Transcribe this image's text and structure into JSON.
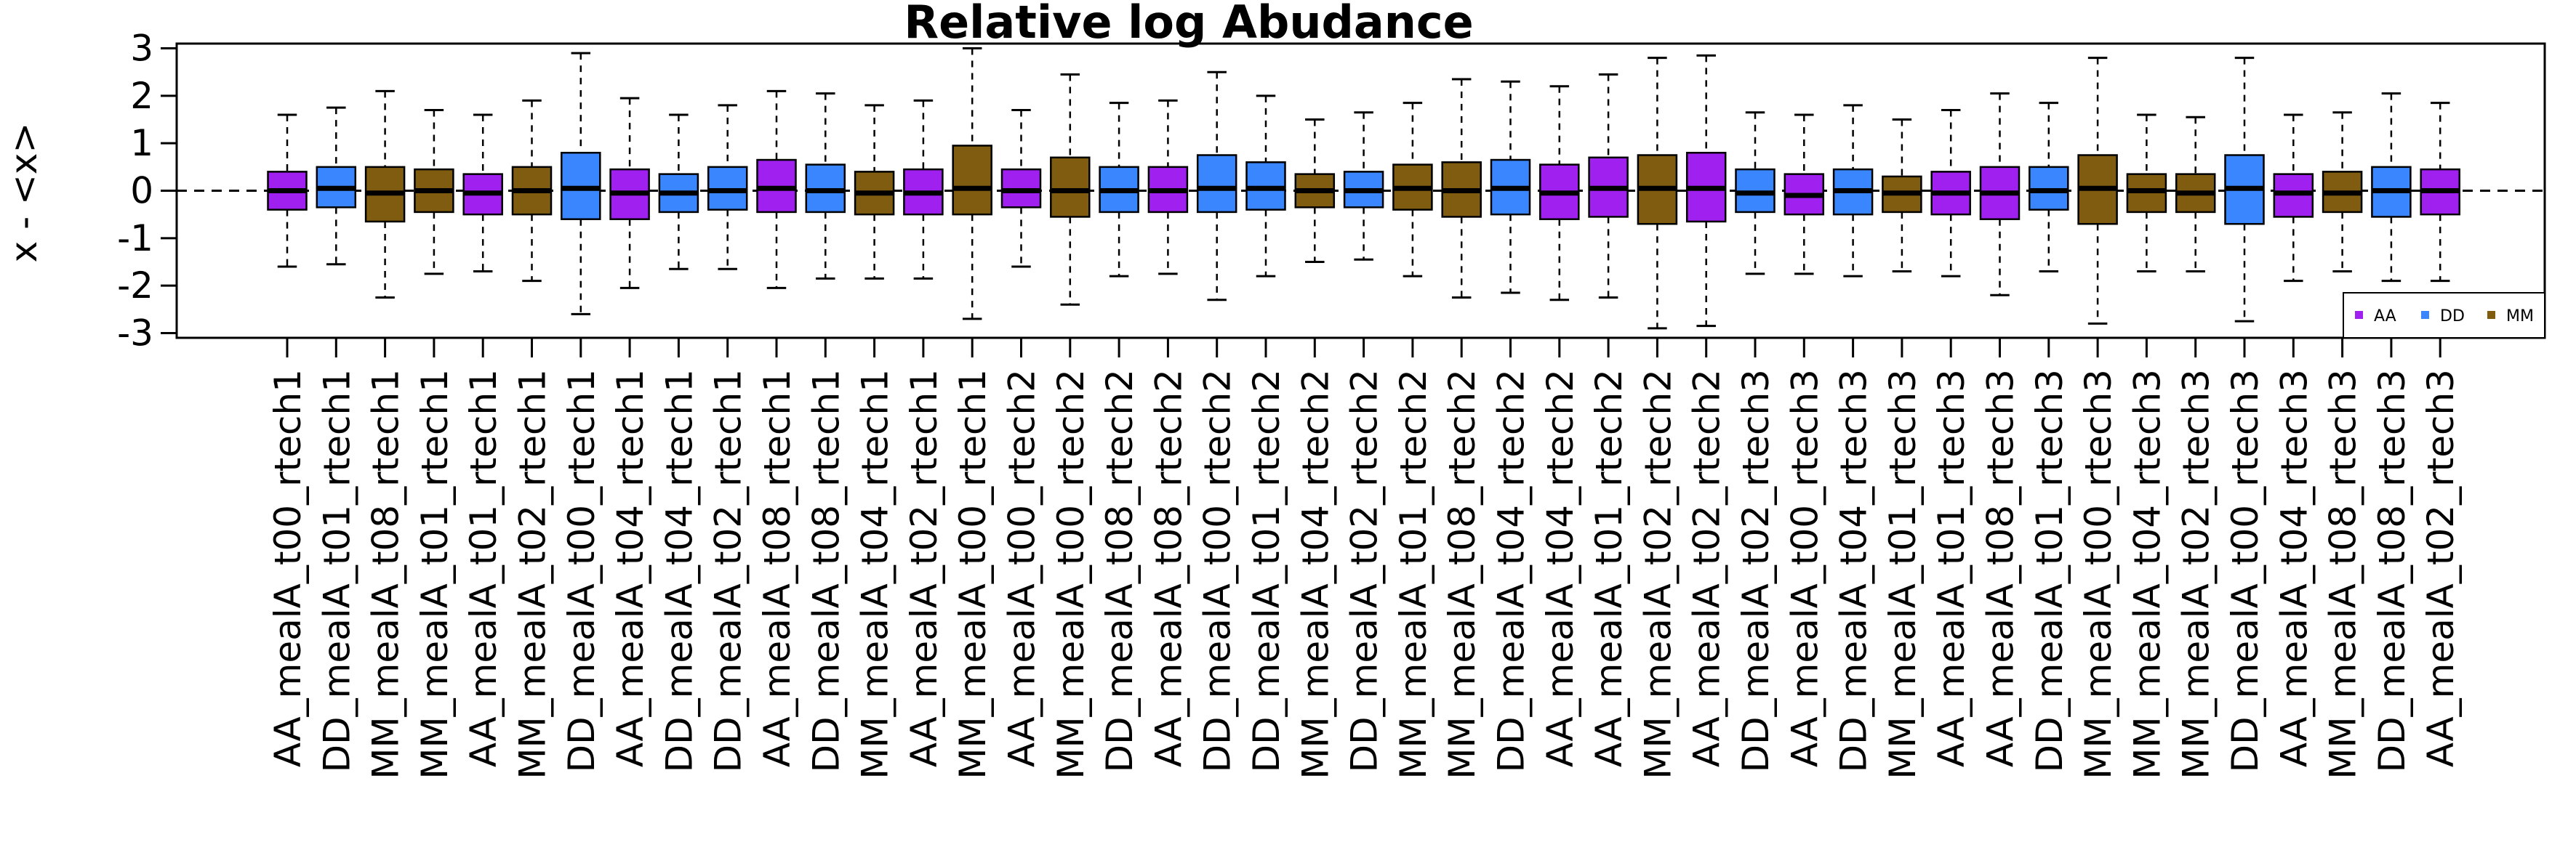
{
  "chart_data": {
    "type": "boxplot",
    "title": "Relative log Abudance",
    "ylabel": "x - <x>",
    "xlabel": "",
    "ylim": [
      -3.1,
      3.1
    ],
    "yticks": [
      3,
      2,
      1,
      0,
      -1,
      -2,
      -3
    ],
    "ytick_labels": [
      "3",
      "2",
      "1",
      "0",
      "-1",
      "-2",
      "-3"
    ],
    "reference_line": 0,
    "legend": {
      "position": "bottom-right",
      "entries": [
        {
          "label": "AA",
          "color": "#A020F0"
        },
        {
          "label": "DD",
          "color": "#3A86FF"
        },
        {
          "label": "MM",
          "color": "#7F5C0F"
        }
      ]
    },
    "group_colors": {
      "AA": "#A020F0",
      "DD": "#3A86FF",
      "MM": "#7F5C0F"
    },
    "boxes": [
      {
        "label": "AA_mealA_t00_rtech1",
        "group": "AA",
        "whisker_low": -1.6,
        "q1": -0.4,
        "median": 0.0,
        "q3": 0.4,
        "whisker_high": 1.6
      },
      {
        "label": "DD_mealA_t01_rtech1",
        "group": "DD",
        "whisker_low": -1.55,
        "q1": -0.35,
        "median": 0.05,
        "q3": 0.5,
        "whisker_high": 1.75
      },
      {
        "label": "MM_mealA_t08_rtech1",
        "group": "MM",
        "whisker_low": -2.25,
        "q1": -0.65,
        "median": -0.05,
        "q3": 0.5,
        "whisker_high": 2.1
      },
      {
        "label": "MM_mealA_t01_rtech1",
        "group": "MM",
        "whisker_low": -1.75,
        "q1": -0.45,
        "median": 0.0,
        "q3": 0.45,
        "whisker_high": 1.7
      },
      {
        "label": "AA_mealA_t01_rtech1",
        "group": "AA",
        "whisker_low": -1.7,
        "q1": -0.5,
        "median": -0.05,
        "q3": 0.35,
        "whisker_high": 1.6
      },
      {
        "label": "MM_mealA_t02_rtech1",
        "group": "MM",
        "whisker_low": -1.9,
        "q1": -0.5,
        "median": 0.0,
        "q3": 0.5,
        "whisker_high": 1.9
      },
      {
        "label": "DD_mealA_t00_rtech1",
        "group": "DD",
        "whisker_low": -2.6,
        "q1": -0.6,
        "median": 0.05,
        "q3": 0.8,
        "whisker_high": 2.9
      },
      {
        "label": "AA_mealA_t04_rtech1",
        "group": "AA",
        "whisker_low": -2.05,
        "q1": -0.6,
        "median": -0.05,
        "q3": 0.45,
        "whisker_high": 1.95
      },
      {
        "label": "DD_mealA_t04_rtech1",
        "group": "DD",
        "whisker_low": -1.65,
        "q1": -0.45,
        "median": -0.05,
        "q3": 0.35,
        "whisker_high": 1.6
      },
      {
        "label": "DD_mealA_t02_rtech1",
        "group": "DD",
        "whisker_low": -1.65,
        "q1": -0.4,
        "median": 0.0,
        "q3": 0.5,
        "whisker_high": 1.8
      },
      {
        "label": "AA_mealA_t08_rtech1",
        "group": "AA",
        "whisker_low": -2.05,
        "q1": -0.45,
        "median": 0.05,
        "q3": 0.65,
        "whisker_high": 2.1
      },
      {
        "label": "DD_mealA_t08_rtech1",
        "group": "DD",
        "whisker_low": -1.85,
        "q1": -0.45,
        "median": 0.0,
        "q3": 0.55,
        "whisker_high": 2.05
      },
      {
        "label": "MM_mealA_t04_rtech1",
        "group": "MM",
        "whisker_low": -1.85,
        "q1": -0.5,
        "median": -0.05,
        "q3": 0.4,
        "whisker_high": 1.8
      },
      {
        "label": "AA_mealA_t02_rtech1",
        "group": "AA",
        "whisker_low": -1.85,
        "q1": -0.5,
        "median": -0.05,
        "q3": 0.45,
        "whisker_high": 1.9
      },
      {
        "label": "MM_mealA_t00_rtech1",
        "group": "MM",
        "whisker_low": -2.7,
        "q1": -0.5,
        "median": 0.05,
        "q3": 0.95,
        "whisker_high": 3.0
      },
      {
        "label": "AA_mealA_t00_rtech2",
        "group": "AA",
        "whisker_low": -1.6,
        "q1": -0.35,
        "median": 0.0,
        "q3": 0.45,
        "whisker_high": 1.7
      },
      {
        "label": "MM_mealA_t00_rtech2",
        "group": "MM",
        "whisker_low": -2.4,
        "q1": -0.55,
        "median": 0.0,
        "q3": 0.7,
        "whisker_high": 2.45
      },
      {
        "label": "DD_mealA_t08_rtech2",
        "group": "DD",
        "whisker_low": -1.8,
        "q1": -0.45,
        "median": 0.0,
        "q3": 0.5,
        "whisker_high": 1.85
      },
      {
        "label": "AA_mealA_t08_rtech2",
        "group": "AA",
        "whisker_low": -1.75,
        "q1": -0.45,
        "median": 0.0,
        "q3": 0.5,
        "whisker_high": 1.9
      },
      {
        "label": "DD_mealA_t00_rtech2",
        "group": "DD",
        "whisker_low": -2.3,
        "q1": -0.45,
        "median": 0.05,
        "q3": 0.75,
        "whisker_high": 2.5
      },
      {
        "label": "DD_mealA_t01_rtech2",
        "group": "DD",
        "whisker_low": -1.8,
        "q1": -0.4,
        "median": 0.05,
        "q3": 0.6,
        "whisker_high": 2.0
      },
      {
        "label": "MM_mealA_t04_rtech2",
        "group": "MM",
        "whisker_low": -1.5,
        "q1": -0.35,
        "median": 0.0,
        "q3": 0.35,
        "whisker_high": 1.5
      },
      {
        "label": "DD_mealA_t02_rtech2",
        "group": "DD",
        "whisker_low": -1.45,
        "q1": -0.35,
        "median": 0.0,
        "q3": 0.4,
        "whisker_high": 1.65
      },
      {
        "label": "MM_mealA_t01_rtech2",
        "group": "MM",
        "whisker_low": -1.8,
        "q1": -0.4,
        "median": 0.05,
        "q3": 0.55,
        "whisker_high": 1.85
      },
      {
        "label": "MM_mealA_t08_rtech2",
        "group": "MM",
        "whisker_low": -2.25,
        "q1": -0.55,
        "median": 0.0,
        "q3": 0.6,
        "whisker_high": 2.35
      },
      {
        "label": "DD_mealA_t04_rtech2",
        "group": "DD",
        "whisker_low": -2.15,
        "q1": -0.5,
        "median": 0.05,
        "q3": 0.65,
        "whisker_high": 2.3
      },
      {
        "label": "AA_mealA_t04_rtech2",
        "group": "AA",
        "whisker_low": -2.3,
        "q1": -0.6,
        "median": -0.05,
        "q3": 0.55,
        "whisker_high": 2.2
      },
      {
        "label": "AA_mealA_t01_rtech2",
        "group": "AA",
        "whisker_low": -2.25,
        "q1": -0.55,
        "median": 0.05,
        "q3": 0.7,
        "whisker_high": 2.45
      },
      {
        "label": "MM_mealA_t02_rtech2",
        "group": "MM",
        "whisker_low": -2.9,
        "q1": -0.7,
        "median": 0.05,
        "q3": 0.75,
        "whisker_high": 2.8
      },
      {
        "label": "AA_mealA_t02_rtech2",
        "group": "AA",
        "whisker_low": -2.85,
        "q1": -0.65,
        "median": 0.05,
        "q3": 0.8,
        "whisker_high": 2.85
      },
      {
        "label": "DD_mealA_t02_rtech3",
        "group": "DD",
        "whisker_low": -1.75,
        "q1": -0.45,
        "median": -0.05,
        "q3": 0.45,
        "whisker_high": 1.65
      },
      {
        "label": "AA_mealA_t00_rtech3",
        "group": "AA",
        "whisker_low": -1.75,
        "q1": -0.5,
        "median": -0.1,
        "q3": 0.35,
        "whisker_high": 1.6
      },
      {
        "label": "DD_mealA_t04_rtech3",
        "group": "DD",
        "whisker_low": -1.8,
        "q1": -0.5,
        "median": 0.0,
        "q3": 0.45,
        "whisker_high": 1.8
      },
      {
        "label": "MM_mealA_t01_rtech3",
        "group": "MM",
        "whisker_low": -1.7,
        "q1": -0.45,
        "median": -0.05,
        "q3": 0.3,
        "whisker_high": 1.5
      },
      {
        "label": "AA_mealA_t01_rtech3",
        "group": "AA",
        "whisker_low": -1.8,
        "q1": -0.5,
        "median": -0.05,
        "q3": 0.4,
        "whisker_high": 1.7
      },
      {
        "label": "AA_mealA_t08_rtech3",
        "group": "AA",
        "whisker_low": -2.2,
        "q1": -0.6,
        "median": -0.05,
        "q3": 0.5,
        "whisker_high": 2.05
      },
      {
        "label": "DD_mealA_t01_rtech3",
        "group": "DD",
        "whisker_low": -1.7,
        "q1": -0.4,
        "median": 0.0,
        "q3": 0.5,
        "whisker_high": 1.85
      },
      {
        "label": "MM_mealA_t00_rtech3",
        "group": "MM",
        "whisker_low": -2.8,
        "q1": -0.7,
        "median": 0.05,
        "q3": 0.75,
        "whisker_high": 2.8
      },
      {
        "label": "MM_mealA_t04_rtech3",
        "group": "MM",
        "whisker_low": -1.7,
        "q1": -0.45,
        "median": 0.0,
        "q3": 0.35,
        "whisker_high": 1.6
      },
      {
        "label": "MM_mealA_t02_rtech3",
        "group": "MM",
        "whisker_low": -1.7,
        "q1": -0.45,
        "median": -0.05,
        "q3": 0.35,
        "whisker_high": 1.55
      },
      {
        "label": "DD_mealA_t00_rtech3",
        "group": "DD",
        "whisker_low": -2.75,
        "q1": -0.7,
        "median": 0.05,
        "q3": 0.75,
        "whisker_high": 2.8
      },
      {
        "label": "AA_mealA_t04_rtech3",
        "group": "AA",
        "whisker_low": -1.9,
        "q1": -0.55,
        "median": -0.05,
        "q3": 0.35,
        "whisker_high": 1.6
      },
      {
        "label": "MM_mealA_t08_rtech3",
        "group": "MM",
        "whisker_low": -1.7,
        "q1": -0.45,
        "median": -0.05,
        "q3": 0.4,
        "whisker_high": 1.65
      },
      {
        "label": "DD_mealA_t08_rtech3",
        "group": "DD",
        "whisker_low": -1.9,
        "q1": -0.55,
        "median": 0.0,
        "q3": 0.5,
        "whisker_high": 2.05
      },
      {
        "label": "AA_mealA_t02_rtech3",
        "group": "AA",
        "whisker_low": -1.9,
        "q1": -0.5,
        "median": 0.0,
        "q3": 0.45,
        "whisker_high": 1.85
      }
    ]
  }
}
